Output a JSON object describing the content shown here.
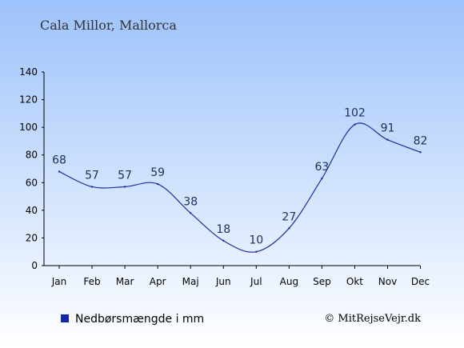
{
  "chart_data": {
    "type": "line",
    "title": "Cala Millor, Mallorca",
    "categories": [
      "Jan",
      "Feb",
      "Mar",
      "Apr",
      "Maj",
      "Jun",
      "Jul",
      "Aug",
      "Sep",
      "Okt",
      "Nov",
      "Dec"
    ],
    "series": [
      {
        "name": "Nedbørsmængde i mm",
        "values": [
          68,
          57,
          57,
          59,
          38,
          18,
          10,
          27,
          63,
          102,
          91,
          82
        ],
        "color": "#1a2fa0"
      }
    ],
    "yticks": [
      0,
      20,
      40,
      60,
      80,
      100,
      120,
      140
    ],
    "ylim": [
      0,
      140
    ],
    "grid": false,
    "legend_placement": "bottom-left",
    "xlabel": "",
    "ylabel": ""
  },
  "legend": {
    "label": "Nedbørsmængde i mm",
    "color": "#1228a8"
  },
  "credit": "© MitRejseVejr.dk",
  "colors": {
    "sky_top": "#9dc2fb",
    "sky_bottom": "#ffffff",
    "line": "#1a2fa0",
    "label": "#1a2f5a"
  }
}
